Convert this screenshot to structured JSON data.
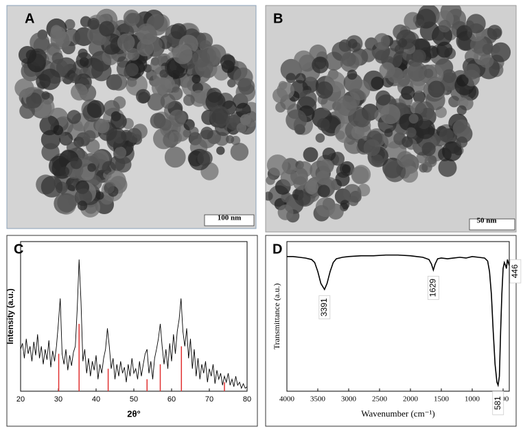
{
  "images": [
    {
      "label": "A",
      "scale_bar": "100 nm"
    },
    {
      "label": "B",
      "scale_bar": "50 nm"
    }
  ],
  "chart_data": [
    {
      "type": "line",
      "panel_label": "C",
      "xlabel": "2θ°",
      "ylabel": "Intensity (a.u.)",
      "color": "#000000",
      "xlim": [
        20,
        80
      ],
      "xticks": [
        20,
        30,
        40,
        50,
        60,
        70,
        80
      ],
      "ylim": [
        0,
        100
      ],
      "x": [
        20,
        20.5,
        21,
        21.5,
        22,
        22.5,
        23,
        23.5,
        24,
        24.5,
        25,
        25.5,
        26,
        26.5,
        27,
        27.5,
        28,
        28.5,
        29,
        29.5,
        30,
        30.5,
        31,
        31.5,
        32,
        32.5,
        33,
        33.5,
        34,
        34.5,
        35,
        35.5,
        36,
        36.5,
        37,
        37.5,
        38,
        38.5,
        39,
        39.5,
        40,
        40.5,
        41,
        41.5,
        42,
        42.5,
        43,
        43.5,
        44,
        44.5,
        45,
        45.5,
        46,
        46.5,
        47,
        47.5,
        48,
        48.5,
        49,
        49.5,
        50,
        50.5,
        51,
        51.5,
        52,
        52.5,
        53,
        53.5,
        54,
        54.5,
        55,
        55.5,
        56,
        56.5,
        57,
        57.5,
        58,
        58.5,
        59,
        59.5,
        60,
        60.5,
        61,
        61.5,
        62,
        62.5,
        63,
        63.5,
        64,
        64.5,
        65,
        65.5,
        66,
        66.5,
        67,
        67.5,
        68,
        68.5,
        69,
        69.5,
        70,
        70.5,
        71,
        71.5,
        72,
        72.5,
        73,
        73.5,
        74,
        74.5,
        75,
        75.5,
        76,
        76.5,
        77,
        77.5,
        78,
        78.5,
        79,
        79.5,
        80
      ],
      "values": [
        28,
        32,
        22,
        35,
        25,
        30,
        20,
        33,
        24,
        38,
        22,
        30,
        18,
        28,
        21,
        34,
        16,
        27,
        20,
        30,
        45,
        62,
        25,
        18,
        28,
        14,
        24,
        17,
        26,
        30,
        55,
        88,
        60,
        20,
        28,
        12,
        22,
        10,
        20,
        14,
        24,
        8,
        18,
        12,
        22,
        28,
        42,
        30,
        15,
        22,
        8,
        18,
        10,
        20,
        12,
        16,
        6,
        18,
        10,
        22,
        12,
        15,
        8,
        20,
        10,
        18,
        25,
        28,
        12,
        20,
        8,
        22,
        28,
        35,
        45,
        30,
        18,
        28,
        15,
        32,
        20,
        38,
        25,
        40,
        48,
        62,
        40,
        30,
        42,
        22,
        35,
        15,
        28,
        10,
        22,
        8,
        18,
        12,
        20,
        6,
        15,
        10,
        18,
        5,
        14,
        8,
        12,
        4,
        10,
        6,
        12,
        4,
        8,
        3,
        10,
        4,
        6,
        2,
        5,
        2,
        3
      ],
      "reference_lines": {
        "color": "#e03030",
        "x": [
          30.1,
          35.5,
          43.2,
          53.5,
          57.0,
          62.6,
          74.0
        ],
        "values": [
          25,
          45,
          15,
          8,
          18,
          30,
          6
        ]
      }
    },
    {
      "type": "line",
      "panel_label": "D",
      "xlabel": "Wavenumber (cm⁻¹)",
      "ylabel": "Transmittance (a.u.)",
      "color": "#000000",
      "xlim": [
        4000,
        400
      ],
      "xticks": [
        4000,
        3500,
        3000,
        2500,
        2000,
        1500,
        1000,
        500
      ],
      "ylim": [
        0,
        100
      ],
      "x": [
        4000,
        3900,
        3800,
        3700,
        3600,
        3550,
        3500,
        3450,
        3391,
        3350,
        3300,
        3250,
        3200,
        3100,
        3000,
        2800,
        2600,
        2400,
        2200,
        2000,
        1900,
        1800,
        1700,
        1660,
        1629,
        1600,
        1560,
        1500,
        1400,
        1300,
        1200,
        1100,
        1000,
        900,
        800,
        750,
        720,
        690,
        660,
        630,
        600,
        581,
        560,
        540,
        520,
        500,
        480,
        460,
        446,
        430,
        415,
        400
      ],
      "values": [
        90,
        90,
        89.5,
        89,
        88,
        86,
        80,
        72,
        68,
        72,
        80,
        86,
        88.5,
        89.5,
        90,
        90.5,
        90.5,
        91,
        91,
        90.5,
        90,
        89.5,
        88,
        85,
        81,
        85,
        88.5,
        89,
        88.5,
        89,
        89.5,
        89,
        90,
        89.5,
        89,
        87,
        80,
        65,
        40,
        18,
        6,
        4,
        10,
        40,
        65,
        82,
        86,
        84,
        82,
        88,
        86,
        84
      ],
      "annotations": [
        3391,
        1629,
        581,
        446
      ]
    }
  ]
}
